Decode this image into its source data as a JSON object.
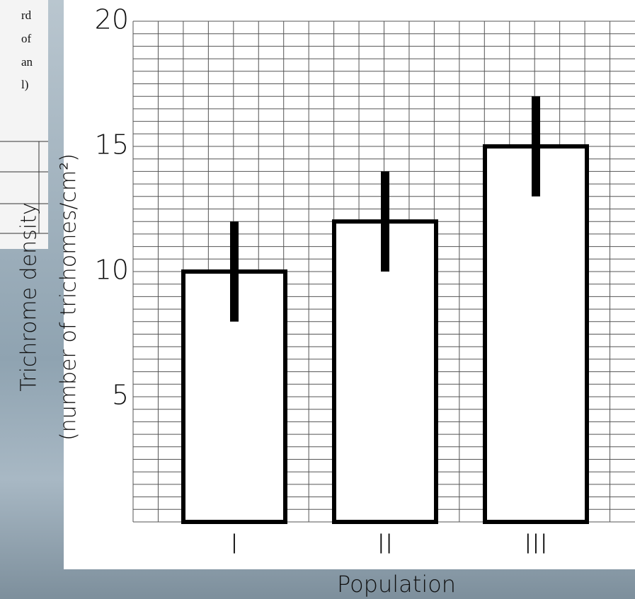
{
  "chart_data": {
    "type": "bar",
    "title_lines": [
      "Trichrome density",
      "(number of trichomes/cm²)"
    ],
    "x_label": "Population",
    "categories": [
      "I",
      "II",
      "III"
    ],
    "values": [
      10,
      12,
      15
    ],
    "errors": [
      2,
      2,
      2
    ],
    "color": "#ffffff",
    "edge_color": "#000000",
    "ylim": [
      0,
      20
    ],
    "yticks": [
      5,
      10,
      15,
      20
    ],
    "grid": true,
    "ygrid_step": 0.5
  },
  "partial_table": {
    "lines": [
      "rd",
      "of",
      "an",
      "l)"
    ]
  }
}
